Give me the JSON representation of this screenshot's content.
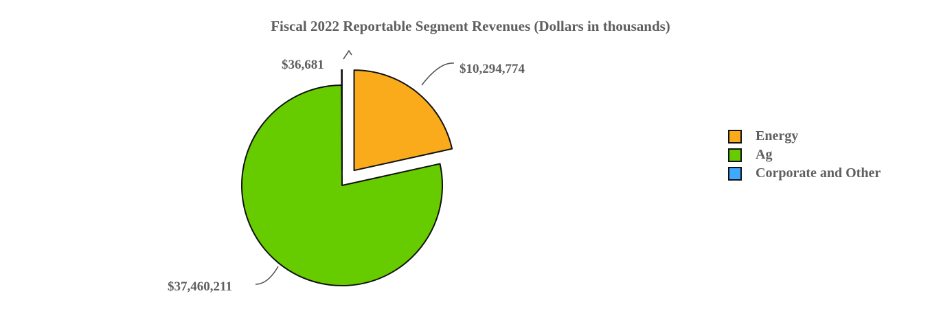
{
  "chart_data": {
    "type": "pie",
    "title": "Fiscal 2022 Reportable Segment Revenues (Dollars in thousands)",
    "categories": [
      "Energy",
      "Ag",
      "Corporate and Other"
    ],
    "values": [
      10294774,
      37460211,
      36681
    ],
    "value_labels": [
      "$10,294,774",
      "$37,460,211",
      "$36,681"
    ],
    "colors": [
      "#F9AB1B",
      "#66CC00",
      "#3FA9FF"
    ],
    "exploded": [
      "Energy",
      "Corporate and Other"
    ],
    "legend_position": "right",
    "units": "Dollars in thousands"
  },
  "legend": {
    "items": [
      {
        "label": "Energy",
        "color": "#F9AB1B"
      },
      {
        "label": "Ag",
        "color": "#66CC00"
      },
      {
        "label": "Corporate and Other",
        "color": "#3FA9FF"
      }
    ]
  }
}
